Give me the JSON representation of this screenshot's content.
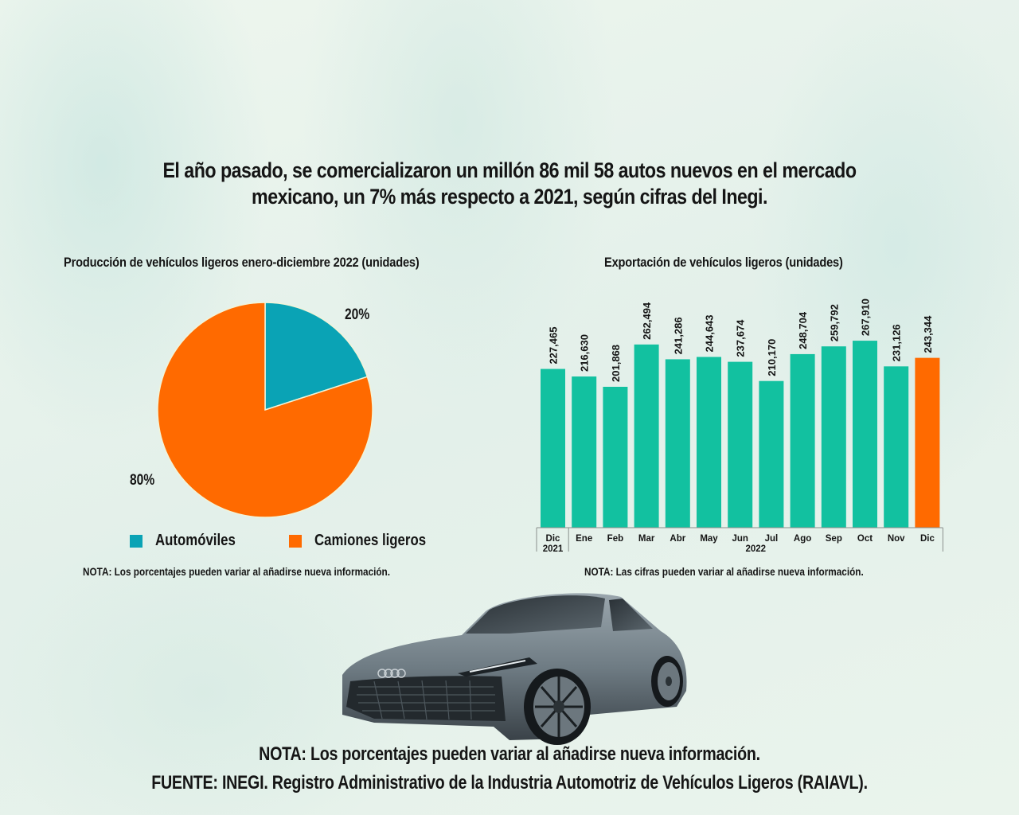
{
  "headline": "El año pasado, se comercializaron un millón 86 mil 58 autos nuevos en el mercado mexicano, un 7% más respecto a 2021, según cifras del Inegi.",
  "colors": {
    "teal_bar": "#12c1a0",
    "orange": "#ff6a00",
    "pie_teal": "#0aa3b5",
    "text": "#151515"
  },
  "chart_data": [
    {
      "type": "pie",
      "title": "Producción de vehículos ligeros enero-diciembre 2022 (unidades)",
      "slices": [
        {
          "label": "Automóviles",
          "value": 20,
          "display": "20%",
          "color": "#0aa3b5"
        },
        {
          "label": "Camiones ligeros",
          "value": 80,
          "display": "80%",
          "color": "#ff6a00"
        }
      ],
      "legend": [
        "Automóviles",
        "Camiones ligeros"
      ],
      "legend_position": "bottom",
      "note": "NOTA: Los porcentajes pueden variar al añadirse nueva información."
    },
    {
      "type": "bar",
      "title": "Exportación de vehículos ligeros (unidades)",
      "categories": [
        "Dic",
        "Ene",
        "Feb",
        "Mar",
        "Abr",
        "May",
        "Jun",
        "Jul",
        "Ago",
        "Sep",
        "Oct",
        "Nov",
        "Dic"
      ],
      "year_groups": [
        {
          "label": "2021",
          "start": 0,
          "end": 0
        },
        {
          "label": "2022",
          "start": 1,
          "end": 12
        }
      ],
      "values": [
        227465,
        216630,
        201868,
        262494,
        241286,
        244643,
        237674,
        210170,
        248704,
        259792,
        267910,
        231126,
        243344
      ],
      "value_labels": [
        "227,465",
        "216,630",
        "201,868",
        "262,494",
        "241,286",
        "244,643",
        "237,674",
        "210,170",
        "248,704",
        "259,792",
        "267,910",
        "231,126",
        "243,344"
      ],
      "highlight_index": 12,
      "ylim": [
        0,
        270000
      ],
      "grid": false,
      "xlabel": "",
      "ylabel": "",
      "note": "NOTA: Las cifras pueden variar al añadirse nueva información."
    }
  ],
  "car_image": {
    "description": "car-photo"
  },
  "footer": {
    "note": "NOTA: Los porcentajes pueden variar al añadirse nueva información.",
    "source": "FUENTE: INEGI. Registro Administrativo de la Industria Automotriz de Vehículos Ligeros (RAIAVL)."
  }
}
